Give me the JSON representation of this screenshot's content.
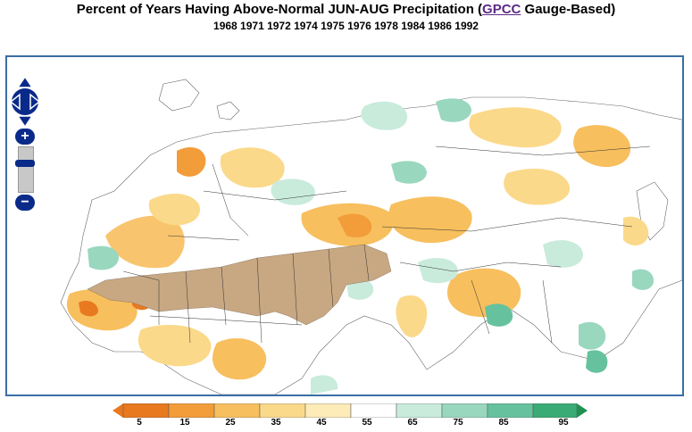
{
  "header": {
    "title_before": "Percent of Years Having Above-Normal JUN-AUG Precipitation (",
    "title_link": "GPCC",
    "title_after": " Gauge-Based)",
    "years": "1968 1971 1972 1974 1975 1976 1978 1984 1986 1992"
  },
  "map": {
    "region": "Europe, Africa, Asia",
    "variable": "JUN-AUG Precipitation",
    "dry_mask_color": "#c8a882"
  },
  "controls": {
    "pan_up": "pan-up",
    "pan_down": "pan-down",
    "pan_left": "pan-left",
    "pan_right": "pan-right",
    "zoom_in_label": "+",
    "zoom_out_label": "−"
  },
  "legend": {
    "ticks": [
      "5",
      "15",
      "25",
      "35",
      "45",
      "55",
      "65",
      "75",
      "85",
      "95"
    ],
    "colors": [
      "#e8791f",
      "#f29c3a",
      "#f7bf5e",
      "#fbd98a",
      "#fdebb8",
      "#ffffff",
      "#c9ebdc",
      "#99d7bf",
      "#66c29e",
      "#3aab75",
      "#1f9150"
    ]
  }
}
